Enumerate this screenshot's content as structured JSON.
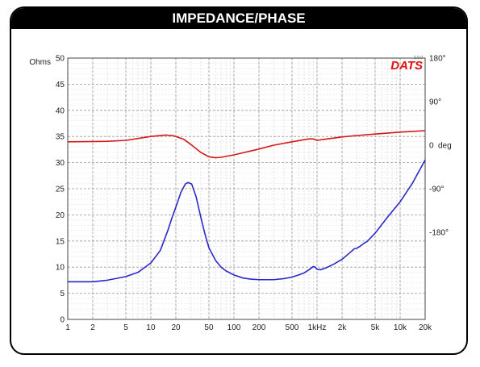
{
  "chart_data": {
    "type": "line",
    "title": "IMPEDANCE/PHASE",
    "watermark": "DATS",
    "watermark_sup": "2.0.0",
    "watermark_color": "#e01010",
    "x_scale": "log",
    "xlim": [
      1,
      20000
    ],
    "x_ticks": [
      {
        "value": 1,
        "label": "1"
      },
      {
        "value": 2,
        "label": "2"
      },
      {
        "value": 5,
        "label": "5"
      },
      {
        "value": 10,
        "label": "10"
      },
      {
        "value": 20,
        "label": "20"
      },
      {
        "value": 50,
        "label": "50"
      },
      {
        "value": 100,
        "label": "100"
      },
      {
        "value": 200,
        "label": "200"
      },
      {
        "value": 500,
        "label": "500"
      },
      {
        "value": 1000,
        "label": "1kHz"
      },
      {
        "value": 2000,
        "label": "2k"
      },
      {
        "value": 5000,
        "label": "5k"
      },
      {
        "value": 10000,
        "label": "10k"
      },
      {
        "value": 20000,
        "label": "20k"
      }
    ],
    "y_left": {
      "label": "Ohms",
      "color": "#3a3ad0",
      "lim": [
        0,
        50
      ],
      "ticks": [
        0,
        5,
        10,
        15,
        20,
        25,
        30,
        35,
        40,
        45,
        50
      ]
    },
    "y_right": {
      "label": "deg",
      "color": "#d42020",
      "lim": [
        -360,
        180
      ],
      "ticks": [
        {
          "value": 180,
          "label": "180°"
        },
        {
          "value": 90,
          "label": "90°"
        },
        {
          "value": 0,
          "label": "0"
        },
        {
          "value": -90,
          "label": "-90°"
        },
        {
          "value": -180,
          "label": "-180°"
        }
      ]
    },
    "grid": true,
    "series": [
      {
        "axis": "left",
        "color": "#2a2ac8",
        "points": [
          [
            1,
            7.2
          ],
          [
            2,
            7.2
          ],
          [
            3,
            7.5
          ],
          [
            5,
            8.2
          ],
          [
            7,
            9.0
          ],
          [
            10,
            10.8
          ],
          [
            13,
            13.2
          ],
          [
            16,
            17.0
          ],
          [
            18,
            19.5
          ],
          [
            20,
            21.5
          ],
          [
            23,
            24.3
          ],
          [
            26,
            25.9
          ],
          [
            28,
            26.2
          ],
          [
            31,
            25.9
          ],
          [
            35,
            23.5
          ],
          [
            40,
            19.5
          ],
          [
            45,
            16.2
          ],
          [
            50,
            13.7
          ],
          [
            60,
            11.3
          ],
          [
            70,
            10.0
          ],
          [
            80,
            9.3
          ],
          [
            100,
            8.5
          ],
          [
            130,
            7.9
          ],
          [
            160,
            7.7
          ],
          [
            200,
            7.6
          ],
          [
            300,
            7.6
          ],
          [
            400,
            7.8
          ],
          [
            500,
            8.1
          ],
          [
            600,
            8.5
          ],
          [
            700,
            8.9
          ],
          [
            800,
            9.5
          ],
          [
            900,
            10.1
          ],
          [
            950,
            10.0
          ],
          [
            1000,
            9.6
          ],
          [
            1100,
            9.5
          ],
          [
            1300,
            9.9
          ],
          [
            1600,
            10.6
          ],
          [
            2000,
            11.5
          ],
          [
            2500,
            12.8
          ],
          [
            2800,
            13.5
          ],
          [
            3000,
            13.6
          ],
          [
            3300,
            14.0
          ],
          [
            3700,
            14.6
          ],
          [
            4000,
            14.9
          ],
          [
            5000,
            16.5
          ],
          [
            7000,
            19.5
          ],
          [
            10000,
            22.5
          ],
          [
            14000,
            26.0
          ],
          [
            20000,
            30.5
          ]
        ]
      },
      {
        "axis": "right",
        "color": "#d41818",
        "points": [
          [
            1,
            7
          ],
          [
            3,
            8
          ],
          [
            5,
            10
          ],
          [
            10,
            18
          ],
          [
            15,
            21
          ],
          [
            18,
            20
          ],
          [
            20,
            18
          ],
          [
            25,
            12
          ],
          [
            30,
            2
          ],
          [
            35,
            -7
          ],
          [
            40,
            -15
          ],
          [
            50,
            -24
          ],
          [
            60,
            -26
          ],
          [
            70,
            -25
          ],
          [
            100,
            -20
          ],
          [
            200,
            -8
          ],
          [
            300,
            0
          ],
          [
            500,
            7
          ],
          [
            800,
            13
          ],
          [
            900,
            13
          ],
          [
            1000,
            10
          ],
          [
            1200,
            12
          ],
          [
            2000,
            17
          ],
          [
            3000,
            20
          ],
          [
            5000,
            23
          ],
          [
            10000,
            27
          ],
          [
            20000,
            30
          ]
        ]
      }
    ]
  }
}
